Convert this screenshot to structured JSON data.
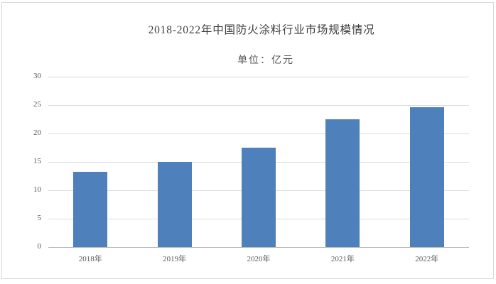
{
  "chart_data": {
    "type": "bar",
    "title": "2018-2022年中国防火涂料行业市场规模情况",
    "subtitle": "单位：亿元",
    "categories": [
      "2018年",
      "2019年",
      "2020年",
      "2021年",
      "2022年"
    ],
    "values": [
      13.2,
      15,
      17.5,
      22.5,
      24.6
    ],
    "xlabel": "",
    "ylabel": "",
    "ylim": [
      0,
      30
    ],
    "yticks": [
      0,
      5,
      10,
      15,
      20,
      25,
      30
    ],
    "grid": true,
    "legend": "none",
    "bar_color": "#4e81bc",
    "gridline_color": "#dcdcdc",
    "axis_line_color": "#b9b9b9",
    "tick_label_color": "#595959",
    "title_color": "#404040",
    "frame_color": "#d9d9d9",
    "background_color": "#ffffff"
  }
}
